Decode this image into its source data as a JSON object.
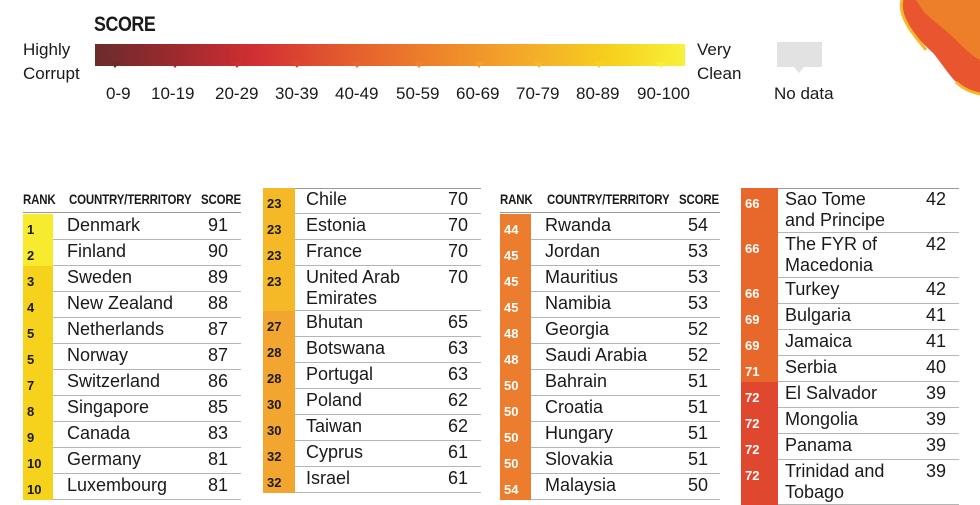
{
  "legend": {
    "title": "SCORE",
    "left_label_1": "Highly",
    "left_label_2": "Corrupt",
    "right_label_1": "Very",
    "right_label_2": "Clean",
    "ranges": [
      "0-9",
      "10-19",
      "20-29",
      "30-39",
      "40-49",
      "50-59",
      "60-69",
      "70-79",
      "80-89",
      "90-100"
    ],
    "no_data": "No data",
    "colors": {
      "0-9": "#6b2b2b",
      "10-19": "#9e2a2e",
      "20-29": "#d12f33",
      "30-39": "#e0472f",
      "40-49": "#e8682c",
      "50-59": "#ee842a",
      "60-69": "#f3a02a",
      "70-79": "#f5b928",
      "80-89": "#f6d21d",
      "90-100": "#f8f13a",
      "no_data": "#e2e2e2"
    }
  },
  "headers": {
    "rank": "RANK",
    "country": "COUNTRY/TERRITORY",
    "score": "SCORE"
  },
  "chart_data": {
    "type": "table",
    "columns": [
      "RANK",
      "COUNTRY/TERRITORY",
      "SCORE"
    ],
    "rows": [
      {
        "rank": "1",
        "country": "Denmark",
        "score": 91
      },
      {
        "rank": "2",
        "country": "Finland",
        "score": 90
      },
      {
        "rank": "3",
        "country": "Sweden",
        "score": 89
      },
      {
        "rank": "4",
        "country": "New Zealand",
        "score": 88
      },
      {
        "rank": "5",
        "country": "Netherlands",
        "score": 87
      },
      {
        "rank": "5",
        "country": "Norway",
        "score": 87
      },
      {
        "rank": "7",
        "country": "Switzerland",
        "score": 86
      },
      {
        "rank": "8",
        "country": "Singapore",
        "score": 85
      },
      {
        "rank": "9",
        "country": "Canada",
        "score": 83
      },
      {
        "rank": "10",
        "country": "Germany",
        "score": 81
      },
      {
        "rank": "10",
        "country": "Luxembourg",
        "score": 81
      },
      {
        "rank": "23",
        "country": "Chile",
        "score": 70
      },
      {
        "rank": "23",
        "country": "Estonia",
        "score": 70
      },
      {
        "rank": "23",
        "country": "France",
        "score": 70
      },
      {
        "rank": "23",
        "country": "United Arab Emirates",
        "score": 70
      },
      {
        "rank": "27",
        "country": "Bhutan",
        "score": 65
      },
      {
        "rank": "28",
        "country": "Botswana",
        "score": 63
      },
      {
        "rank": "28",
        "country": "Portugal",
        "score": 63
      },
      {
        "rank": "30",
        "country": "Poland",
        "score": 62
      },
      {
        "rank": "30",
        "country": "Taiwan",
        "score": 62
      },
      {
        "rank": "32",
        "country": "Cyprus",
        "score": 61
      },
      {
        "rank": "32",
        "country": "Israel",
        "score": 61
      },
      {
        "rank": "44",
        "country": "Rwanda",
        "score": 54
      },
      {
        "rank": "45",
        "country": "Jordan",
        "score": 53
      },
      {
        "rank": "45",
        "country": "Mauritius",
        "score": 53
      },
      {
        "rank": "45",
        "country": "Namibia",
        "score": 53
      },
      {
        "rank": "48",
        "country": "Georgia",
        "score": 52
      },
      {
        "rank": "48",
        "country": "Saudi Arabia",
        "score": 52
      },
      {
        "rank": "50",
        "country": "Bahrain",
        "score": 51
      },
      {
        "rank": "50",
        "country": "Croatia",
        "score": 51
      },
      {
        "rank": "50",
        "country": "Hungary",
        "score": 51
      },
      {
        "rank": "50",
        "country": "Slovakia",
        "score": 51
      },
      {
        "rank": "54",
        "country": "Malaysia",
        "score": 50
      },
      {
        "rank": "66",
        "country": "Sao Tome and Principe",
        "score": 42
      },
      {
        "rank": "66",
        "country": "The FYR of Macedonia",
        "score": 42
      },
      {
        "rank": "66",
        "country": "Turkey",
        "score": 42
      },
      {
        "rank": "69",
        "country": "Bulgaria",
        "score": 41
      },
      {
        "rank": "69",
        "country": "Jamaica",
        "score": 41
      },
      {
        "rank": "71",
        "country": "Serbia",
        "score": 40
      },
      {
        "rank": "72",
        "country": "El Salvador",
        "score": 39
      },
      {
        "rank": "72",
        "country": "Mongolia",
        "score": 39
      },
      {
        "rank": "72",
        "country": "Panama",
        "score": 39
      },
      {
        "rank": "72",
        "country": "Trinidad and Tobago",
        "score": 39
      }
    ]
  },
  "blocks": [
    {
      "rows": [
        {
          "rank": "1",
          "country_lines": [
            "Denmark"
          ],
          "score": "91"
        },
        {
          "rank": "2",
          "country_lines": [
            "Finland"
          ],
          "score": "90"
        },
        {
          "rank": "3",
          "country_lines": [
            "Sweden"
          ],
          "score": "89"
        },
        {
          "rank": "4",
          "country_lines": [
            "New Zealand"
          ],
          "score": "88"
        },
        {
          "rank": "5",
          "country_lines": [
            "Netherlands"
          ],
          "score": "87"
        },
        {
          "rank": "5",
          "country_lines": [
            "Norway"
          ],
          "score": "87"
        },
        {
          "rank": "7",
          "country_lines": [
            "Switzerland"
          ],
          "score": "86"
        },
        {
          "rank": "8",
          "country_lines": [
            "Singapore"
          ],
          "score": "85"
        },
        {
          "rank": "9",
          "country_lines": [
            "Canada"
          ],
          "score": "83"
        },
        {
          "rank": "10",
          "country_lines": [
            "Germany"
          ],
          "score": "81"
        },
        {
          "rank": "10",
          "country_lines": [
            "Luxembourg"
          ],
          "score": "81"
        }
      ]
    },
    {
      "rows": [
        {
          "rank": "23",
          "country_lines": [
            "Chile"
          ],
          "score": "70"
        },
        {
          "rank": "23",
          "country_lines": [
            "Estonia"
          ],
          "score": "70"
        },
        {
          "rank": "23",
          "country_lines": [
            "France"
          ],
          "score": "70"
        },
        {
          "rank": "23",
          "country_lines": [
            "United Arab",
            "Emirates"
          ],
          "score": "70"
        },
        {
          "rank": "27",
          "country_lines": [
            "Bhutan"
          ],
          "score": "65"
        },
        {
          "rank": "28",
          "country_lines": [
            "Botswana"
          ],
          "score": "63"
        },
        {
          "rank": "28",
          "country_lines": [
            "Portugal"
          ],
          "score": "63"
        },
        {
          "rank": "30",
          "country_lines": [
            "Poland"
          ],
          "score": "62"
        },
        {
          "rank": "30",
          "country_lines": [
            "Taiwan"
          ],
          "score": "62"
        },
        {
          "rank": "32",
          "country_lines": [
            "Cyprus"
          ],
          "score": "61"
        },
        {
          "rank": "32",
          "country_lines": [
            "Israel"
          ],
          "score": "61"
        }
      ]
    },
    {
      "rows": [
        {
          "rank": "44",
          "country_lines": [
            "Rwanda"
          ],
          "score": "54"
        },
        {
          "rank": "45",
          "country_lines": [
            "Jordan"
          ],
          "score": "53"
        },
        {
          "rank": "45",
          "country_lines": [
            "Mauritius"
          ],
          "score": "53"
        },
        {
          "rank": "45",
          "country_lines": [
            "Namibia"
          ],
          "score": "53"
        },
        {
          "rank": "48",
          "country_lines": [
            "Georgia"
          ],
          "score": "52"
        },
        {
          "rank": "48",
          "country_lines": [
            "Saudi Arabia"
          ],
          "score": "52"
        },
        {
          "rank": "50",
          "country_lines": [
            "Bahrain"
          ],
          "score": "51"
        },
        {
          "rank": "50",
          "country_lines": [
            "Croatia"
          ],
          "score": "51"
        },
        {
          "rank": "50",
          "country_lines": [
            "Hungary"
          ],
          "score": "51"
        },
        {
          "rank": "50",
          "country_lines": [
            "Slovakia"
          ],
          "score": "51"
        },
        {
          "rank": "54",
          "country_lines": [
            "Malaysia"
          ],
          "score": "50"
        }
      ]
    },
    {
      "rows": [
        {
          "rank": "66",
          "country_lines": [
            "Sao Tome",
            "and Principe"
          ],
          "score": "42"
        },
        {
          "rank": "66",
          "country_lines": [
            "The FYR of",
            "Macedonia"
          ],
          "score": "42"
        },
        {
          "rank": "66",
          "country_lines": [
            "Turkey"
          ],
          "score": "42"
        },
        {
          "rank": "69",
          "country_lines": [
            "Bulgaria"
          ],
          "score": "41"
        },
        {
          "rank": "69",
          "country_lines": [
            "Jamaica"
          ],
          "score": "41"
        },
        {
          "rank": "71",
          "country_lines": [
            "Serbia"
          ],
          "score": "40"
        },
        {
          "rank": "72",
          "country_lines": [
            "El Salvador"
          ],
          "score": "39"
        },
        {
          "rank": "72",
          "country_lines": [
            "Mongolia"
          ],
          "score": "39"
        },
        {
          "rank": "72",
          "country_lines": [
            "Panama"
          ],
          "score": "39"
        },
        {
          "rank": "72",
          "country_lines": [
            "Trinidad and",
            "Tobago"
          ],
          "score": "39"
        }
      ]
    }
  ]
}
